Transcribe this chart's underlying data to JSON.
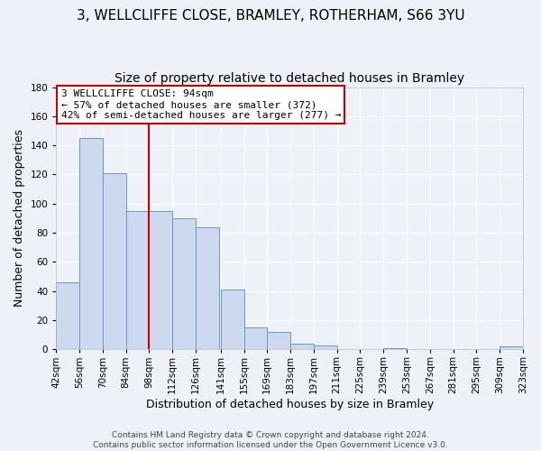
{
  "title": "3, WELLCLIFFE CLOSE, BRAMLEY, ROTHERHAM, S66 3YU",
  "subtitle": "Size of property relative to detached houses in Bramley",
  "xlabel": "Distribution of detached houses by size in Bramley",
  "ylabel": "Number of detached properties",
  "bar_left_edges": [
    42,
    56,
    70,
    84,
    98,
    112,
    126,
    141,
    155,
    169,
    183,
    197,
    211,
    225,
    239,
    253,
    267,
    281,
    295,
    309
  ],
  "bar_widths": [
    14,
    14,
    14,
    14,
    14,
    14,
    14,
    14,
    14,
    14,
    14,
    14,
    14,
    14,
    14,
    14,
    14,
    14,
    14,
    14
  ],
  "bar_heights": [
    46,
    145,
    121,
    95,
    95,
    90,
    84,
    41,
    15,
    12,
    4,
    3,
    0,
    0,
    1,
    0,
    0,
    0,
    0,
    2
  ],
  "bar_color": "#ccd9ee",
  "bar_edge_color": "#6699cc",
  "tick_labels": [
    "42sqm",
    "56sqm",
    "70sqm",
    "84sqm",
    "98sqm",
    "112sqm",
    "126sqm",
    "141sqm",
    "155sqm",
    "169sqm",
    "183sqm",
    "197sqm",
    "211sqm",
    "225sqm",
    "239sqm",
    "253sqm",
    "267sqm",
    "281sqm",
    "295sqm",
    "309sqm",
    "323sqm"
  ],
  "tick_positions": [
    42,
    56,
    70,
    84,
    98,
    112,
    126,
    141,
    155,
    169,
    183,
    197,
    211,
    225,
    239,
    253,
    267,
    281,
    295,
    309,
    323
  ],
  "vline_x": 98,
  "vline_color": "#cc0000",
  "ylim": [
    0,
    180
  ],
  "yticks": [
    0,
    20,
    40,
    60,
    80,
    100,
    120,
    140,
    160,
    180
  ],
  "xlim_left": 42,
  "xlim_right": 323,
  "annotation_title": "3 WELLCLIFFE CLOSE: 94sqm",
  "annotation_line1": "← 57% of detached houses are smaller (372)",
  "annotation_line2": "42% of semi-detached houses are larger (277) →",
  "annotation_box_color": "#ffffff",
  "annotation_box_edge_color": "#cc0000",
  "footer1": "Contains HM Land Registry data © Crown copyright and database right 2024.",
  "footer2": "Contains public sector information licensed under the Open Government Licence v3.0.",
  "background_color": "#eef2f8",
  "grid_color": "#ffffff",
  "title_fontsize": 11,
  "subtitle_fontsize": 10,
  "ylabel_fontsize": 9,
  "xlabel_fontsize": 9,
  "tick_fontsize": 7.5,
  "annotation_fontsize": 8,
  "footer_fontsize": 6.5
}
